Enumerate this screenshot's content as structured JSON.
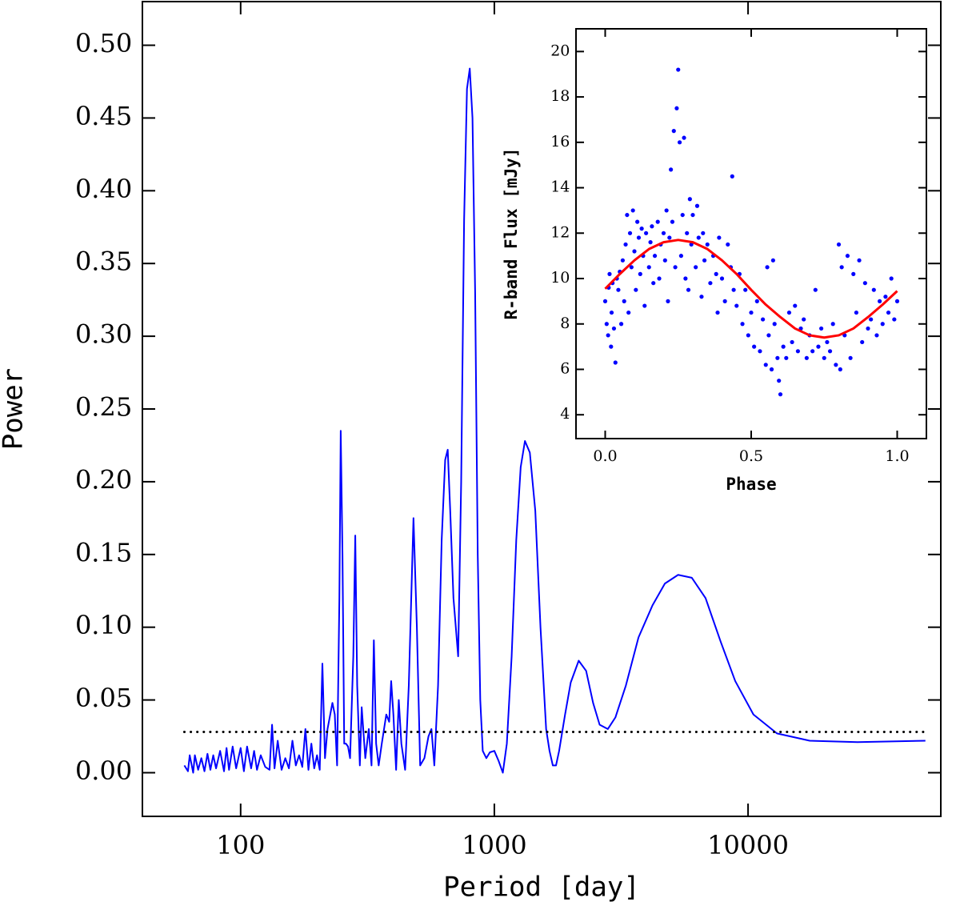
{
  "chart_data": [
    {
      "type": "line",
      "x_label": "Period [day]",
      "y_label": "Power",
      "xscale": "log",
      "xlim": [
        41,
        57500
      ],
      "ylim": [
        -0.03,
        0.53
      ],
      "xticks": [
        100,
        1000,
        10000
      ],
      "yticks": [
        {
          "value": 0,
          "label": "0.00"
        },
        {
          "value": 0.05,
          "label": "0.05"
        },
        {
          "value": 0.1,
          "label": "0.10"
        },
        {
          "value": 0.15,
          "label": "0.15"
        },
        {
          "value": 0.2,
          "label": "0.20"
        },
        {
          "value": 0.25,
          "label": "0.25"
        },
        {
          "value": 0.3,
          "label": "0.30"
        },
        {
          "value": 0.35,
          "label": "0.35"
        },
        {
          "value": 0.4,
          "label": "0.40"
        },
        {
          "value": 0.45,
          "label": "0.45"
        },
        {
          "value": 0.5,
          "label": "0.50"
        }
      ],
      "series": [
        {
          "type": "line",
          "color": "#0000ff",
          "style": "solid",
          "x": [
            60,
            62,
            63,
            65,
            66,
            68,
            70,
            72,
            74,
            76,
            78,
            80,
            83,
            86,
            88,
            90,
            93,
            96,
            100,
            103,
            106,
            110,
            113,
            116,
            120,
            125,
            130,
            133,
            136,
            140,
            145,
            150,
            155,
            160,
            165,
            170,
            175,
            180,
            185,
            190,
            195,
            200,
            205,
            210,
            215,
            220,
            230,
            235,
            240,
            245,
            248,
            252,
            256,
            260,
            265,
            270,
            278,
            283,
            288,
            295,
            300,
            310,
            320,
            328,
            335,
            342,
            350,
            360,
            375,
            385,
            392,
            400,
            410,
            420,
            430,
            445,
            460,
            480,
            495,
            510,
            530,
            550,
            565,
            580,
            600,
            620,
            640,
            655,
            670,
            690,
            720,
            740,
            760,
            780,
            800,
            820,
            840,
            860,
            880,
            900,
            930,
            960,
            1000,
            1040,
            1080,
            1120,
            1170,
            1220,
            1270,
            1320,
            1380,
            1450,
            1520,
            1600,
            1650,
            1700,
            1750,
            1800,
            1900,
            2000,
            2150,
            2300,
            2450,
            2600,
            2800,
            3000,
            3300,
            3700,
            4200,
            4700,
            5300,
            6000,
            6800,
            7800,
            8900,
            10500,
            13000,
            17500,
            27000,
            50000
          ],
          "values": [
            0.005,
            0.001,
            0.012,
            0.0,
            0.012,
            0.002,
            0.01,
            0.001,
            0.013,
            0.002,
            0.012,
            0.003,
            0.015,
            0.001,
            0.017,
            0.002,
            0.018,
            0.003,
            0.017,
            0.001,
            0.018,
            0.003,
            0.015,
            0.002,
            0.012,
            0.004,
            0.002,
            0.033,
            0.003,
            0.022,
            0.002,
            0.01,
            0.003,
            0.022,
            0.005,
            0.012,
            0.004,
            0.03,
            0.002,
            0.02,
            0.003,
            0.012,
            0.002,
            0.075,
            0.01,
            0.03,
            0.048,
            0.04,
            0.005,
            0.12,
            0.235,
            0.15,
            0.02,
            0.02,
            0.018,
            0.01,
            0.08,
            0.163,
            0.06,
            0.005,
            0.045,
            0.01,
            0.03,
            0.005,
            0.091,
            0.02,
            0.005,
            0.02,
            0.04,
            0.035,
            0.063,
            0.04,
            0.002,
            0.05,
            0.02,
            0.002,
            0.06,
            0.175,
            0.1,
            0.005,
            0.01,
            0.025,
            0.03,
            0.005,
            0.06,
            0.16,
            0.215,
            0.222,
            0.18,
            0.12,
            0.08,
            0.2,
            0.38,
            0.47,
            0.484,
            0.45,
            0.33,
            0.15,
            0.05,
            0.015,
            0.01,
            0.014,
            0.015,
            0.008,
            0.0,
            0.02,
            0.08,
            0.16,
            0.21,
            0.228,
            0.22,
            0.18,
            0.1,
            0.03,
            0.015,
            0.005,
            0.005,
            0.015,
            0.04,
            0.062,
            0.077,
            0.07,
            0.048,
            0.033,
            0.03,
            0.038,
            0.06,
            0.093,
            0.115,
            0.13,
            0.136,
            0.134,
            0.12,
            0.09,
            0.063,
            0.04,
            0.027,
            0.022,
            0.021,
            0.022
          ]
        },
        {
          "type": "line",
          "color": "#000000",
          "style": "dotted",
          "x": [
            60,
            50000
          ],
          "values": [
            0.028,
            0.028
          ]
        }
      ]
    },
    {
      "type": "scatter",
      "x_label": "Phase",
      "y_label": "R-band Flux [mJy]",
      "xlim": [
        -0.1,
        1.1
      ],
      "ylim": [
        2.95,
        21.0
      ],
      "xticks": [
        {
          "value": 0,
          "label": "0.0"
        },
        {
          "value": 0.5,
          "label": "0.5"
        },
        {
          "value": 1,
          "label": "1.0"
        }
      ],
      "yticks": [
        4,
        6,
        8,
        10,
        12,
        14,
        16,
        18,
        20
      ],
      "series": [
        {
          "type": "scatter",
          "color": "#0000ff",
          "x": [
            0.0,
            0.005,
            0.01,
            0.012,
            0.015,
            0.02,
            0.022,
            0.025,
            0.03,
            0.035,
            0.04,
            0.045,
            0.05,
            0.055,
            0.06,
            0.065,
            0.07,
            0.075,
            0.08,
            0.085,
            0.09,
            0.095,
            0.1,
            0.105,
            0.11,
            0.115,
            0.12,
            0.125,
            0.13,
            0.135,
            0.14,
            0.15,
            0.155,
            0.16,
            0.165,
            0.17,
            0.18,
            0.185,
            0.19,
            0.2,
            0.205,
            0.21,
            0.215,
            0.22,
            0.225,
            0.23,
            0.235,
            0.24,
            0.245,
            0.25,
            0.255,
            0.26,
            0.265,
            0.27,
            0.275,
            0.28,
            0.285,
            0.29,
            0.295,
            0.3,
            0.31,
            0.315,
            0.32,
            0.33,
            0.335,
            0.34,
            0.35,
            0.36,
            0.37,
            0.38,
            0.385,
            0.39,
            0.4,
            0.41,
            0.42,
            0.43,
            0.435,
            0.44,
            0.45,
            0.46,
            0.47,
            0.48,
            0.49,
            0.5,
            0.51,
            0.52,
            0.53,
            0.54,
            0.55,
            0.555,
            0.56,
            0.57,
            0.575,
            0.58,
            0.59,
            0.595,
            0.6,
            0.61,
            0.62,
            0.63,
            0.64,
            0.65,
            0.66,
            0.67,
            0.68,
            0.69,
            0.7,
            0.71,
            0.72,
            0.73,
            0.74,
            0.75,
            0.76,
            0.77,
            0.78,
            0.79,
            0.8,
            0.805,
            0.81,
            0.82,
            0.83,
            0.84,
            0.85,
            0.86,
            0.87,
            0.88,
            0.89,
            0.9,
            0.91,
            0.92,
            0.93,
            0.94,
            0.95,
            0.96,
            0.97,
            0.98,
            0.99,
            1.0
          ],
          "values": [
            9.0,
            8.0,
            7.5,
            9.6,
            10.2,
            7.0,
            8.5,
            9.8,
            7.8,
            6.3,
            10.0,
            9.5,
            10.3,
            8.0,
            10.8,
            9.0,
            11.5,
            12.8,
            8.5,
            12.0,
            10.5,
            13.0,
            11.2,
            9.5,
            12.5,
            11.8,
            10.2,
            12.2,
            11.0,
            8.8,
            12.0,
            10.5,
            11.6,
            12.3,
            9.8,
            11.0,
            12.5,
            10.0,
            11.5,
            12.0,
            10.8,
            13.0,
            9.0,
            11.8,
            14.8,
            12.5,
            16.5,
            10.5,
            17.5,
            19.2,
            16.0,
            11.0,
            12.8,
            16.2,
            10.0,
            12.0,
            9.5,
            13.5,
            11.5,
            12.8,
            10.5,
            13.2,
            11.8,
            9.2,
            12.0,
            10.8,
            11.5,
            9.8,
            11.0,
            10.2,
            8.5,
            11.8,
            10.0,
            9.0,
            11.5,
            10.5,
            14.5,
            9.5,
            8.8,
            10.2,
            8.0,
            9.5,
            7.5,
            8.5,
            7.0,
            9.0,
            6.8,
            8.2,
            6.2,
            10.5,
            7.5,
            6.0,
            10.8,
            8.0,
            6.5,
            5.5,
            4.9,
            7.0,
            6.5,
            8.5,
            7.2,
            8.8,
            6.8,
            7.8,
            8.2,
            6.5,
            7.5,
            6.8,
            9.5,
            7.0,
            7.8,
            6.5,
            7.2,
            6.8,
            8.0,
            6.2,
            11.5,
            6.0,
            10.5,
            7.5,
            11.0,
            6.5,
            10.2,
            8.5,
            10.8,
            7.2,
            9.8,
            7.8,
            8.2,
            9.5,
            7.5,
            9.0,
            8.0,
            9.2,
            8.5,
            10.0,
            8.2,
            9.0
          ]
        },
        {
          "type": "line",
          "color": "#ff0000",
          "style": "solid",
          "x": [
            0,
            0.05,
            0.1,
            0.15,
            0.2,
            0.25,
            0.3,
            0.35,
            0.4,
            0.45,
            0.5,
            0.55,
            0.6,
            0.65,
            0.7,
            0.75,
            0.8,
            0.85,
            0.9,
            0.95,
            1.0
          ],
          "values": [
            9.55,
            10.2,
            10.8,
            11.3,
            11.6,
            11.7,
            11.6,
            11.3,
            10.8,
            10.2,
            9.5,
            8.85,
            8.3,
            7.8,
            7.5,
            7.4,
            7.5,
            7.8,
            8.3,
            8.85,
            9.45
          ]
        }
      ]
    }
  ]
}
